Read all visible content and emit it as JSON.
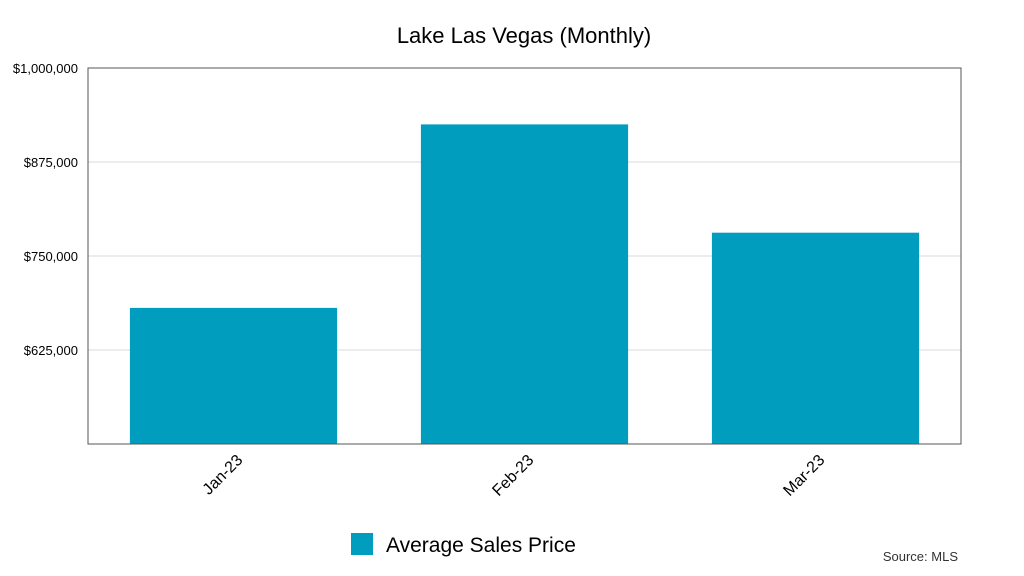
{
  "chart_data": {
    "type": "bar",
    "title": "Lake Las Vegas (Monthly)",
    "categories": [
      "Jan-23",
      "Feb-23",
      "Mar-23"
    ],
    "series": [
      {
        "name": "Average Sales Price",
        "values": [
          681000,
          925000,
          781000
        ],
        "color": "#019dbf"
      }
    ],
    "xlabel": "",
    "ylabel": "",
    "ylim": [
      500000,
      1000000
    ],
    "yticks": [
      625000,
      750000,
      875000,
      1000000
    ],
    "ytick_labels": [
      "$625,000",
      "$750,000",
      "$875,000",
      "$1,000,000"
    ],
    "grid": true,
    "legend": "bottom",
    "source": "Source: MLS"
  }
}
